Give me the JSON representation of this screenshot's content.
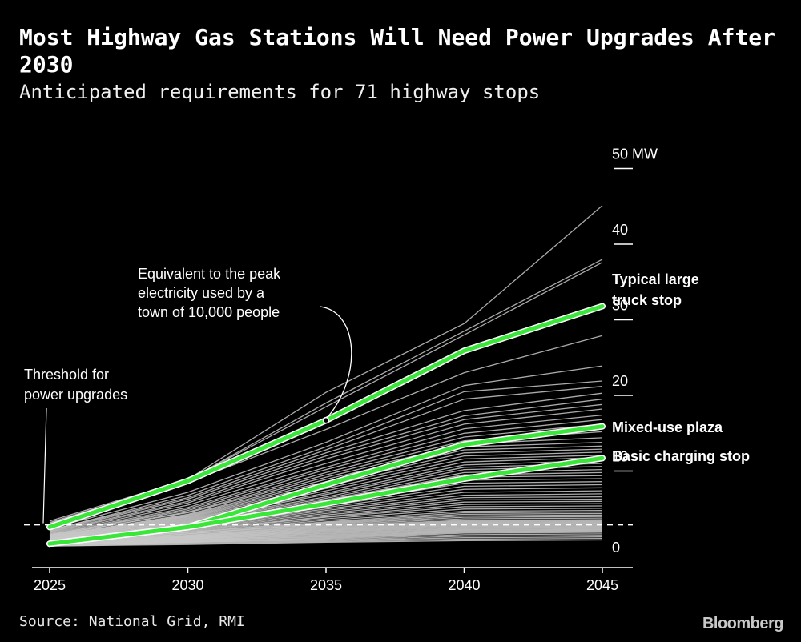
{
  "header": {
    "title": "Most Highway Gas Stations Will Need Power Upgrades After 2030",
    "subtitle": "Anticipated requirements for 71 highway stops"
  },
  "footer": {
    "source": "Source: National Grid, RMI",
    "brand": "Bloomberg"
  },
  "colors": {
    "background": "#000000",
    "background_line": "#c9c9c9",
    "highlight": "#39e639",
    "text": "#ffffff"
  },
  "chart_data": {
    "type": "line",
    "x": [
      2025,
      2030,
      2035,
      2040,
      2045
    ],
    "xlim": [
      2025,
      2045
    ],
    "ylim": [
      0,
      50
    ],
    "y_unit": "MW",
    "y_ticks": [
      {
        "value": 0,
        "label": "0"
      },
      {
        "value": 10,
        "label": "10"
      },
      {
        "value": 20,
        "label": "20"
      },
      {
        "value": 30,
        "label": "30"
      },
      {
        "value": 40,
        "label": "40"
      },
      {
        "value": 50,
        "label": "50 MW"
      }
    ],
    "x_ticks": [
      "2025",
      "2030",
      "2035",
      "2040",
      "2045"
    ],
    "threshold": {
      "value": 2.9,
      "label": "Threshold for power upgrades"
    },
    "highlighted_series": [
      {
        "name": "Typical large truck stop",
        "values": [
          2.6,
          8.7,
          16.7,
          25.9,
          31.8
        ]
      },
      {
        "name": "Mixed-use plaza",
        "values": [
          0.4,
          2.6,
          8.2,
          13.5,
          15.9
        ]
      },
      {
        "name": "Basic charging stop",
        "values": [
          0.4,
          2.6,
          5.7,
          9.0,
          11.7
        ]
      }
    ],
    "background_series": [
      [
        3.4,
        8.9,
        20.4,
        29.5,
        45.1
      ],
      [
        3.1,
        8.8,
        19.0,
        28.5,
        38.0
      ],
      [
        3.2,
        8.8,
        18.5,
        28.0,
        37.6
      ],
      [
        2.8,
        8.5,
        15.5,
        23.0,
        27.9
      ],
      [
        2.4,
        7.2,
        13.8,
        21.3,
        23.9
      ],
      [
        2.2,
        6.8,
        13.2,
        20.5,
        21.9
      ],
      [
        2.2,
        6.5,
        12.8,
        19.5,
        21.2
      ],
      [
        2.1,
        6.3,
        12.4,
        18.0,
        20.3
      ],
      [
        2.0,
        6.0,
        12.0,
        17.3,
        19.5
      ],
      [
        1.9,
        5.8,
        11.6,
        16.8,
        18.8
      ],
      [
        1.8,
        5.5,
        11.0,
        16.2,
        18.2
      ],
      [
        1.7,
        5.2,
        10.5,
        15.6,
        17.4
      ],
      [
        1.6,
        5.0,
        10.2,
        15.0,
        16.8
      ],
      [
        1.6,
        4.8,
        9.8,
        14.5,
        16.2
      ],
      [
        1.5,
        4.6,
        9.5,
        14.0,
        15.2
      ],
      [
        1.5,
        4.5,
        9.2,
        13.6,
        14.4
      ],
      [
        1.4,
        4.3,
        8.9,
        13.2,
        13.8
      ],
      [
        1.4,
        4.2,
        8.6,
        12.8,
        13.3
      ],
      [
        1.3,
        4.1,
        8.3,
        12.4,
        12.9
      ],
      [
        1.3,
        4.0,
        8.0,
        12.0,
        12.5
      ],
      [
        1.2,
        3.9,
        7.7,
        11.6,
        12.1
      ],
      [
        1.2,
        3.8,
        7.4,
        11.2,
        11.8
      ],
      [
        1.1,
        3.7,
        7.1,
        10.8,
        11.4
      ],
      [
        1.1,
        3.6,
        6.9,
        10.5,
        11.0
      ],
      [
        1.0,
        3.5,
        6.6,
        10.2,
        10.6
      ],
      [
        1.0,
        3.4,
        6.4,
        9.8,
        10.2
      ],
      [
        1.0,
        3.3,
        6.2,
        9.5,
        9.8
      ],
      [
        0.9,
        3.2,
        6.0,
        9.2,
        9.4
      ],
      [
        0.9,
        3.1,
        5.8,
        8.8,
        9.0
      ],
      [
        0.9,
        3.0,
        5.6,
        8.4,
        8.6
      ],
      [
        0.8,
        2.9,
        5.4,
        8.0,
        8.2
      ],
      [
        0.8,
        2.8,
        5.2,
        7.6,
        7.8
      ],
      [
        0.8,
        2.7,
        5.0,
        7.2,
        7.4
      ],
      [
        0.7,
        2.6,
        4.8,
        6.8,
        7.0
      ],
      [
        0.7,
        2.5,
        4.6,
        6.5,
        6.6
      ],
      [
        0.7,
        2.4,
        4.4,
        6.2,
        6.3
      ],
      [
        0.7,
        2.3,
        4.2,
        5.9,
        6.0
      ],
      [
        0.6,
        2.2,
        4.0,
        5.6,
        5.7
      ],
      [
        0.6,
        2.1,
        3.9,
        5.3,
        5.4
      ],
      [
        0.6,
        2.0,
        3.7,
        5.0,
        5.1
      ],
      [
        0.6,
        1.9,
        3.5,
        4.7,
        4.8
      ],
      [
        0.6,
        1.9,
        3.3,
        4.5,
        4.6
      ],
      [
        0.5,
        1.8,
        3.2,
        4.3,
        4.4
      ],
      [
        0.5,
        1.7,
        3.1,
        4.1,
        4.2
      ],
      [
        0.5,
        1.7,
        3.0,
        3.9,
        4.0
      ],
      [
        0.5,
        1.6,
        2.9,
        3.7,
        3.8
      ],
      [
        0.5,
        1.5,
        2.8,
        3.5,
        3.6
      ],
      [
        0.5,
        1.5,
        2.7,
        3.4,
        3.5
      ],
      [
        0.4,
        1.4,
        2.6,
        3.3,
        3.4
      ],
      [
        0.4,
        1.4,
        2.5,
        3.2,
        3.3
      ],
      [
        0.4,
        1.3,
        2.4,
        3.1,
        3.2
      ],
      [
        0.4,
        1.3,
        2.3,
        3.0,
        3.1
      ],
      [
        0.4,
        1.2,
        2.2,
        2.9,
        3.0
      ],
      [
        0.4,
        1.2,
        2.1,
        2.8,
        2.9
      ],
      [
        0.3,
        1.1,
        2.0,
        2.7,
        2.8
      ],
      [
        0.3,
        1.1,
        1.9,
        2.6,
        2.7
      ],
      [
        0.3,
        1.0,
        1.8,
        2.5,
        2.6
      ],
      [
        0.3,
        1.0,
        1.7,
        2.4,
        2.5
      ],
      [
        0.3,
        0.9,
        1.6,
        2.3,
        2.4
      ],
      [
        0.3,
        0.9,
        1.5,
        2.2,
        2.3
      ],
      [
        0.2,
        0.8,
        1.4,
        2.1,
        2.2
      ],
      [
        0.2,
        0.8,
        1.3,
        2.0,
        2.1
      ],
      [
        0.2,
        0.7,
        1.2,
        1.9,
        2.0
      ],
      [
        0.2,
        0.7,
        1.1,
        1.8,
        1.9
      ],
      [
        0.2,
        0.6,
        1.0,
        1.6,
        1.7
      ],
      [
        0.2,
        0.6,
        0.9,
        1.4,
        1.5
      ],
      [
        0.1,
        0.5,
        0.8,
        1.2,
        1.3
      ],
      [
        0.1,
        0.4,
        0.7,
        1.0,
        1.1
      ],
      [
        0.1,
        0.3,
        0.6,
        0.8,
        0.9
      ]
    ],
    "annotations": {
      "peak_town": {
        "text_lines": [
          "Equivalent to the peak",
          "electricity used by a",
          "town of 10,000 people"
        ],
        "series": "Typical large truck stop",
        "x": 2035
      },
      "threshold_label": {
        "text_lines": [
          "Threshold for",
          "power upgrades"
        ]
      },
      "series_labels": [
        {
          "series": "Typical large truck stop",
          "text_lines": [
            "Typical large",
            "truck stop"
          ]
        },
        {
          "series": "Mixed-use plaza",
          "text_lines": [
            "Mixed-use plaza"
          ]
        },
        {
          "series": "Basic charging stop",
          "text_lines": [
            "Basic charging stop"
          ]
        }
      ]
    }
  }
}
